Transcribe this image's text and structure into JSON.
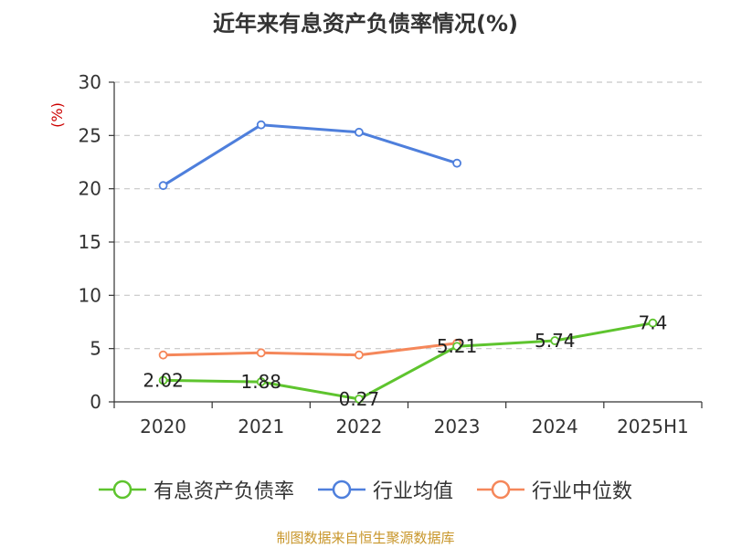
{
  "colors": {
    "series_1": "#5ec42e",
    "series_2": "#4e7fdc",
    "series_3": "#f5875a",
    "source": "#c8962a",
    "unit": "#cc0000"
  },
  "chart_data": {
    "type": "line",
    "title": "近年来有息资产负债率情况(%)",
    "unit_label": "(%)",
    "categories": [
      "2020",
      "2021",
      "2022",
      "2023",
      "2024",
      "2025H1"
    ],
    "ylim": [
      0,
      30
    ],
    "yticks": [
      "0",
      "5",
      "10",
      "15",
      "20",
      "25",
      "30"
    ],
    "grid": true,
    "legend_position": "bottom",
    "series": [
      {
        "name": "有息资产负债率",
        "values": [
          2.02,
          1.88,
          0.27,
          5.21,
          5.74,
          7.4
        ],
        "labels": [
          "2.02",
          "1.88",
          "0.27",
          "5.21",
          "5.74",
          "7.4"
        ]
      },
      {
        "name": "行业均值",
        "values": [
          20.3,
          26.0,
          25.3,
          22.4,
          null,
          null
        ]
      },
      {
        "name": "行业中位数",
        "values": [
          4.4,
          4.6,
          4.4,
          5.5,
          null,
          null
        ]
      }
    ]
  },
  "source_text": "制图数据来自恒生聚源数据库"
}
